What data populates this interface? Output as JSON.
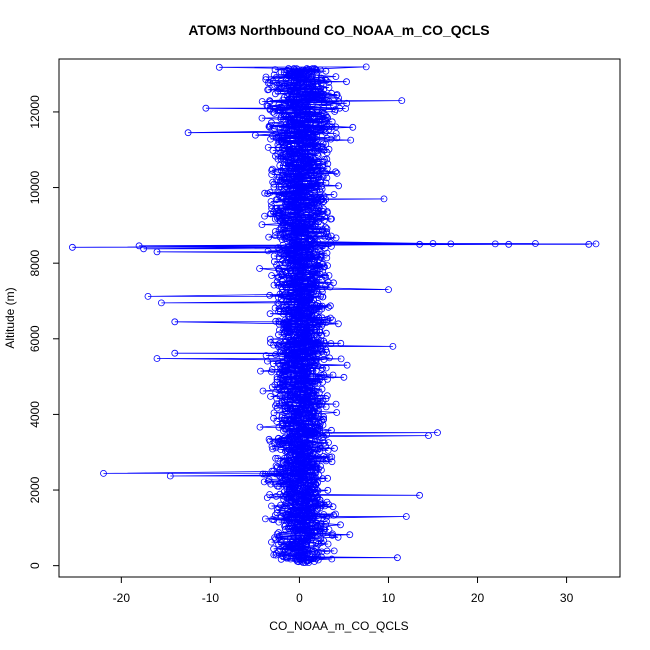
{
  "chart_data": {
    "type": "scatter",
    "title": "ATOM3 Northbound CO_NOAA_m_CO_QCLS",
    "xlabel": "CO_NOAA_m_CO_QCLS",
    "ylabel": "Altitude (m)",
    "xlim": [
      -27,
      36
    ],
    "ylim": [
      -300,
      13400
    ],
    "xticks": [
      -20,
      -10,
      0,
      10,
      20,
      30
    ],
    "yticks": [
      0,
      2000,
      4000,
      6000,
      8000,
      10000,
      12000
    ],
    "grid": false,
    "legend": "none",
    "marker": "open-circle",
    "connected": true,
    "color": "#0000ff",
    "outliers": [
      {
        "x": -25.5,
        "y": 8420
      },
      {
        "x": -18.0,
        "y": 8460
      },
      {
        "x": -17.5,
        "y": 8380
      },
      {
        "x": -16.0,
        "y": 8300
      },
      {
        "x": 33.3,
        "y": 8510
      },
      {
        "x": 32.5,
        "y": 8500
      },
      {
        "x": 26.5,
        "y": 8520
      },
      {
        "x": 23.5,
        "y": 8500
      },
      {
        "x": 22.0,
        "y": 8510
      },
      {
        "x": 17.0,
        "y": 8510
      },
      {
        "x": 15.0,
        "y": 8520
      },
      {
        "x": 13.5,
        "y": 8500
      },
      {
        "x": -22.0,
        "y": 2440
      },
      {
        "x": -14.5,
        "y": 2370
      },
      {
        "x": -16.0,
        "y": 5480
      },
      {
        "x": -14.0,
        "y": 5620
      },
      {
        "x": -17.0,
        "y": 7120
      },
      {
        "x": -15.5,
        "y": 6950
      },
      {
        "x": -14.0,
        "y": 6450
      },
      {
        "x": -12.5,
        "y": 11450
      },
      {
        "x": 15.5,
        "y": 3520
      },
      {
        "x": 14.5,
        "y": 3440
      },
      {
        "x": 13.5,
        "y": 1860
      },
      {
        "x": 12.0,
        "y": 1300
      },
      {
        "x": 11.5,
        "y": 12300
      },
      {
        "x": 11.0,
        "y": 210
      },
      {
        "x": -10.5,
        "y": 12100
      },
      {
        "x": -9.0,
        "y": 13180
      },
      {
        "x": 7.5,
        "y": 13190
      },
      {
        "x": 10.5,
        "y": 5800
      },
      {
        "x": 10.0,
        "y": 7300
      },
      {
        "x": 9.5,
        "y": 9700
      }
    ]
  }
}
